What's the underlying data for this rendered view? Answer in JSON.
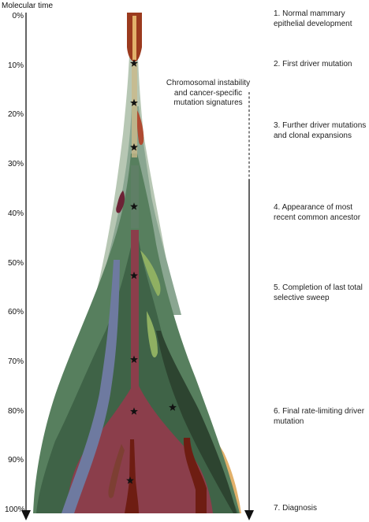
{
  "axis": {
    "title": "Molecular time",
    "ticks": [
      "0%",
      "10%",
      "20%",
      "30%",
      "40%",
      "50%",
      "60%",
      "70%",
      "80%",
      "90%",
      "100%"
    ]
  },
  "annotation": {
    "text": "Chromosomal instability and cancer-specific mutation signatures"
  },
  "stages": [
    {
      "label": "1. Normal mammary epithelial development",
      "time_pct": 0
    },
    {
      "label": "2. First driver mutation",
      "time_pct": 10
    },
    {
      "label": "3. Further driver mutations and clonal expansions",
      "time_pct": 20
    },
    {
      "label": "4. Appearance of most recent common ancestor",
      "time_pct": 40
    },
    {
      "label": "5. Completion of last total selective sweep",
      "time_pct": 60
    },
    {
      "label": "6. Final rate-limiting driver mutation",
      "time_pct": 80
    },
    {
      "label": "7. Diagnosis",
      "time_pct": 100
    }
  ],
  "mutation_markers": [
    {
      "name": "first-driver-star",
      "time_pct": 9.5
    },
    {
      "name": "driver-star-2",
      "time_pct": 17.5
    },
    {
      "name": "driver-star-3",
      "time_pct": 26.5
    },
    {
      "name": "mrca-star",
      "time_pct": 38.5
    },
    {
      "name": "sweep-star-1",
      "time_pct": 52.5
    },
    {
      "name": "sweep-star-2",
      "time_pct": 69.5
    },
    {
      "name": "sweep-star-3",
      "time_pct": 80
    },
    {
      "name": "side-clone-star",
      "time_pct": 79.2
    },
    {
      "name": "diagnosis-star",
      "time_pct": 94
    }
  ],
  "colors": {
    "trunk": "#9b3a1e",
    "orange_clone": "#e2b16b",
    "pale_clone": "#b7c7b4",
    "sage_clone": "#8aa691",
    "green_clone": "#577f5e",
    "dark_green_clone": "#3f6347",
    "maroon_clone": "#8b3e4b",
    "blue_clone": "#6e7aa0",
    "light_green_clone": "#8fb062",
    "dark_red_clone": "#6e1d12",
    "outline": "#111111"
  }
}
